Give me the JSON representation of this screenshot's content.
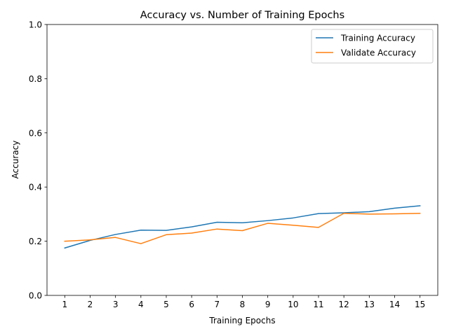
{
  "chart_data": {
    "type": "line",
    "title": "Accuracy vs. Number of Training Epochs",
    "xlabel": "Training Epochs",
    "ylabel": "Accuracy",
    "x": [
      1,
      2,
      3,
      4,
      5,
      6,
      7,
      8,
      9,
      10,
      11,
      12,
      13,
      14,
      15
    ],
    "xlim": [
      0.3,
      15.7
    ],
    "ylim": [
      0.0,
      1.0
    ],
    "yticks": [
      0.0,
      0.2,
      0.4,
      0.6,
      0.8,
      1.0
    ],
    "ytick_labels": [
      "0.0",
      "0.2",
      "0.4",
      "0.6",
      "0.8",
      "1.0"
    ],
    "grid": false,
    "legend_position": "top-right",
    "series": [
      {
        "name": "Training Accuracy",
        "color": "#1f77b4",
        "values": [
          0.175,
          0.203,
          0.225,
          0.241,
          0.24,
          0.253,
          0.27,
          0.268,
          0.276,
          0.286,
          0.302,
          0.305,
          0.309,
          0.322,
          0.331
        ]
      },
      {
        "name": "Validate Accuracy",
        "color": "#ff7f0e",
        "values": [
          0.2,
          0.205,
          0.214,
          0.191,
          0.224,
          0.23,
          0.245,
          0.239,
          0.266,
          0.259,
          0.251,
          0.303,
          0.3,
          0.301,
          0.303
        ]
      }
    ]
  }
}
